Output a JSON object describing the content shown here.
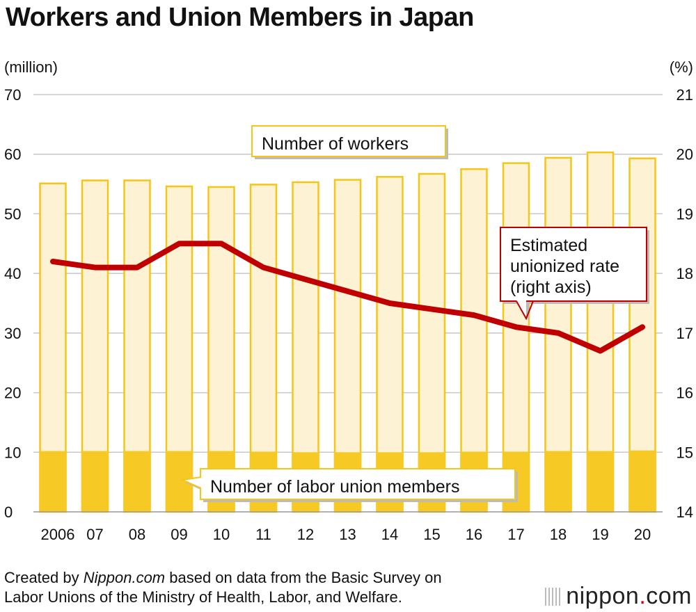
{
  "title": "Workers and Union Members in Japan",
  "chart_data": {
    "type": "bar",
    "categories": [
      "2006",
      "07",
      "08",
      "09",
      "10",
      "11",
      "12",
      "13",
      "14",
      "15",
      "16",
      "17",
      "18",
      "19",
      "20"
    ],
    "y_left": {
      "unit_label": "(million)",
      "ylim": [
        0,
        70
      ],
      "ticks": [
        0,
        10,
        20,
        30,
        40,
        50,
        60,
        70
      ]
    },
    "y_right": {
      "unit_label": "(%)",
      "ylim": [
        14,
        21
      ],
      "ticks": [
        14,
        15,
        16,
        17,
        18,
        19,
        20,
        21
      ]
    },
    "series": [
      {
        "name": "Number of workers",
        "kind": "bar",
        "axis": "left",
        "values": [
          55.1,
          55.6,
          55.6,
          54.6,
          54.5,
          54.9,
          55.3,
          55.7,
          56.2,
          56.7,
          57.5,
          58.5,
          59.4,
          60.3,
          59.3
        ]
      },
      {
        "name": "Number of labor union members",
        "kind": "bar",
        "axis": "left",
        "values": [
          10.2,
          10.2,
          10.2,
          10.2,
          10.2,
          10.1,
          10.0,
          10.0,
          10.0,
          10.0,
          10.1,
          10.1,
          10.2,
          10.2,
          10.3
        ]
      },
      {
        "name": "Estimated unionized rate (right axis)",
        "kind": "line",
        "axis": "right",
        "values": [
          18.2,
          18.1,
          18.1,
          18.5,
          18.5,
          18.1,
          17.9,
          17.7,
          17.5,
          17.4,
          17.3,
          17.1,
          17.0,
          16.7,
          17.1
        ]
      }
    ],
    "annotations": {
      "workers_label": "Number of workers",
      "members_label": "Number of labor union members",
      "rate_label_lines": [
        "Estimated",
        "unionized rate",
        "(right axis)"
      ]
    },
    "grid": true,
    "colors": {
      "workers_fill": "#fdf3d4",
      "workers_stroke": "#f5c518",
      "members_fill": "#f7c925",
      "rate_line": "#c00000",
      "grid": "#c8c8c8"
    }
  },
  "source": {
    "prefix": "Created by ",
    "site": "Nippon.com",
    "rest": " based on data from the Basic Survey on",
    "line2": "Labor Unions of the Ministry of Health, Labor, and Welfare."
  },
  "logo": {
    "main": "nippon",
    "dot": ".",
    "tld": "com"
  }
}
